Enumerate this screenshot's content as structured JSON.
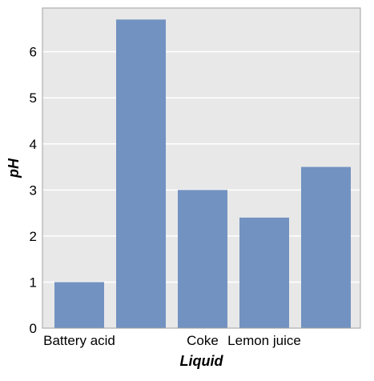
{
  "chart_data": {
    "type": "bar",
    "categories": [
      "Battery acid",
      "",
      "Coke",
      "Lemon juice",
      ""
    ],
    "values": [
      1.0,
      6.7,
      3.0,
      2.4,
      3.5
    ],
    "title": "",
    "xlabel": "Liquid",
    "ylabel": "pH",
    "ylim": [
      0,
      6.95
    ],
    "yticks": [
      "0",
      "1",
      "2",
      "3",
      "4",
      "5",
      "6"
    ],
    "grid": true,
    "legend": "none",
    "colors": {
      "bar": "#7292c1",
      "plot_background": "#e8e8e8",
      "grid": "#ffffff",
      "frame": "#a0a0a0"
    }
  }
}
